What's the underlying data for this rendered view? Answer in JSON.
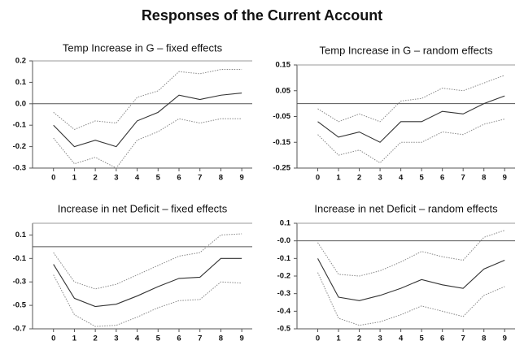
{
  "title": "Responses of the Current Account",
  "chart_data": [
    {
      "type": "line",
      "title": "Temp Increase in G – fixed effects",
      "x": [
        0,
        1,
        2,
        3,
        4,
        5,
        6,
        7,
        8,
        9
      ],
      "xlim": [
        -1,
        9.5
      ],
      "xticks": [
        0,
        1,
        2,
        3,
        4,
        5,
        6,
        7,
        8,
        9
      ],
      "ylim": [
        -0.3,
        0.2
      ],
      "yticks": [
        0.2,
        0.1,
        {
          "value": 0,
          "label": "0.0"
        },
        -0.1,
        -0.2,
        -0.3
      ],
      "hline": 0,
      "series": [
        {
          "color": "#333333",
          "style": "solid",
          "values": [
            -0.1,
            -0.2,
            -0.17,
            -0.2,
            -0.08,
            -0.04,
            0.04,
            0.02,
            0.04,
            0.05
          ]
        },
        {
          "color": "#888888",
          "style": "dotted",
          "values": [
            -0.04,
            -0.12,
            -0.08,
            -0.09,
            0.03,
            0.06,
            0.15,
            0.14,
            0.16,
            0.16
          ]
        },
        {
          "color": "#888888",
          "style": "dotted",
          "values": [
            -0.16,
            -0.28,
            -0.25,
            -0.3,
            -0.17,
            -0.13,
            -0.07,
            -0.09,
            -0.07,
            -0.07
          ]
        }
      ]
    },
    {
      "type": "line",
      "title": "Temp Increase in G – random effects",
      "x": [
        0,
        1,
        2,
        3,
        4,
        5,
        6,
        7,
        8,
        9
      ],
      "xlim": [
        -1,
        9.5
      ],
      "xticks": [
        0,
        1,
        2,
        3,
        4,
        5,
        6,
        7,
        8,
        9
      ],
      "ylim": [
        -0.25,
        0.15
      ],
      "yticks": [
        0.15,
        0.05,
        -0.05,
        -0.15,
        -0.25
      ],
      "hline": 0,
      "series": [
        {
          "color": "#333333",
          "style": "solid",
          "values": [
            -0.07,
            -0.13,
            -0.11,
            -0.15,
            -0.07,
            -0.07,
            -0.03,
            -0.04,
            0.0,
            0.03
          ]
        },
        {
          "color": "#888888",
          "style": "dotted",
          "values": [
            -0.02,
            -0.07,
            -0.04,
            -0.07,
            0.01,
            0.02,
            0.06,
            0.05,
            0.08,
            0.11
          ]
        },
        {
          "color": "#888888",
          "style": "dotted",
          "values": [
            -0.12,
            -0.2,
            -0.18,
            -0.23,
            -0.15,
            -0.15,
            -0.11,
            -0.12,
            -0.08,
            -0.06
          ]
        }
      ]
    },
    {
      "type": "line",
      "title": "Increase in net Deficit – fixed effects",
      "x": [
        0,
        1,
        2,
        3,
        4,
        5,
        6,
        7,
        8,
        9
      ],
      "xlim": [
        -1,
        9.5
      ],
      "xticks": [
        0,
        1,
        2,
        3,
        4,
        5,
        6,
        7,
        8,
        9
      ],
      "ylim": [
        -0.7,
        0.2
      ],
      "yticks": [
        0.1,
        -0.1,
        -0.3,
        -0.5,
        -0.7
      ],
      "hline": 0,
      "series": [
        {
          "color": "#333333",
          "style": "solid",
          "values": [
            -0.15,
            -0.44,
            -0.51,
            -0.49,
            -0.42,
            -0.34,
            -0.27,
            -0.26,
            -0.1,
            -0.1
          ]
        },
        {
          "color": "#888888",
          "style": "dotted",
          "values": [
            -0.05,
            -0.3,
            -0.36,
            -0.32,
            -0.24,
            -0.16,
            -0.08,
            -0.05,
            0.1,
            0.11
          ]
        },
        {
          "color": "#888888",
          "style": "dotted",
          "values": [
            -0.24,
            -0.58,
            -0.68,
            -0.67,
            -0.6,
            -0.52,
            -0.46,
            -0.45,
            -0.3,
            -0.31
          ]
        }
      ]
    },
    {
      "type": "line",
      "title": "Increase in net Deficit – random effects",
      "x": [
        0,
        1,
        2,
        3,
        4,
        5,
        6,
        7,
        8,
        9
      ],
      "xlim": [
        -1,
        9.5
      ],
      "xticks": [
        0,
        1,
        2,
        3,
        4,
        5,
        6,
        7,
        8,
        9
      ],
      "ylim": [
        -0.5,
        0.1
      ],
      "yticks": [
        0.1,
        {
          "value": 0,
          "label": "-0.0"
        },
        -0.1,
        -0.2,
        -0.3,
        -0.4,
        -0.5
      ],
      "hline": 0,
      "series": [
        {
          "color": "#333333",
          "style": "solid",
          "values": [
            -0.1,
            -0.32,
            -0.34,
            -0.31,
            -0.27,
            -0.22,
            -0.25,
            -0.27,
            -0.16,
            -0.11
          ]
        },
        {
          "color": "#888888",
          "style": "dotted",
          "values": [
            -0.01,
            -0.19,
            -0.2,
            -0.17,
            -0.12,
            -0.06,
            -0.09,
            -0.11,
            0.02,
            0.06
          ]
        },
        {
          "color": "#888888",
          "style": "dotted",
          "values": [
            -0.18,
            -0.44,
            -0.48,
            -0.46,
            -0.42,
            -0.37,
            -0.4,
            -0.43,
            -0.31,
            -0.26
          ]
        }
      ]
    }
  ]
}
